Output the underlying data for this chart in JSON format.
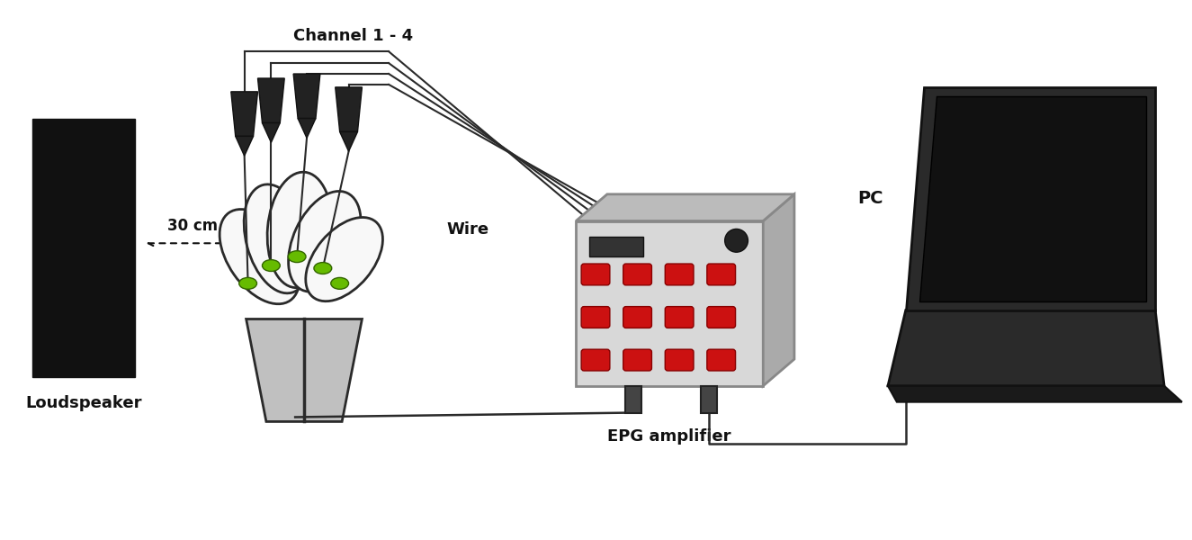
{
  "labels": {
    "loudspeaker": "Loudspeaker",
    "channel": "Channel 1 - 4",
    "wire": "Wire",
    "distance": "30 cm",
    "epg": "EPG amplifier",
    "pc": "PC"
  },
  "colors": {
    "black": "#111111",
    "dark_gray": "#2a2a2a",
    "mid_gray": "#888888",
    "light_gray": "#c8c8c8",
    "amp_body": "#d8d8d8",
    "amp_side": "#aaaaaa",
    "amp_top": "#bbbbbb",
    "pot_gray": "#c0c0c0",
    "green": "#66bb00",
    "red": "#cc1111",
    "white": "#ffffff",
    "needle": "#222222"
  }
}
